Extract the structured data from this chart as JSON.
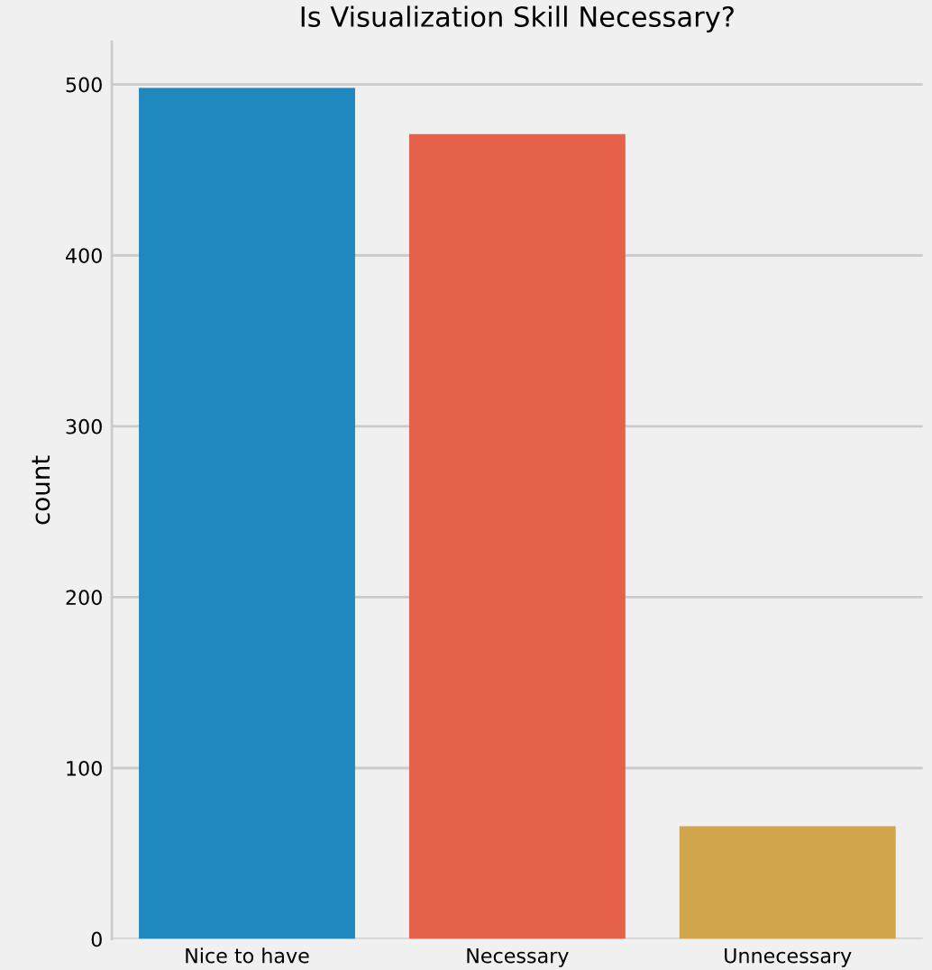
{
  "chart_data": {
    "type": "bar",
    "title": "Is Visualization Skill Necessary?",
    "ylabel": "count",
    "categories": [
      "Nice to have",
      "Necessary",
      "Unnecessary"
    ],
    "values": [
      498,
      471,
      66
    ],
    "colors": [
      "#1f88bf",
      "#e5614a",
      "#d1a54c"
    ],
    "ylim": [
      0,
      525
    ],
    "yticks": [
      0,
      100,
      200,
      300,
      400,
      500
    ],
    "grid": "y"
  }
}
